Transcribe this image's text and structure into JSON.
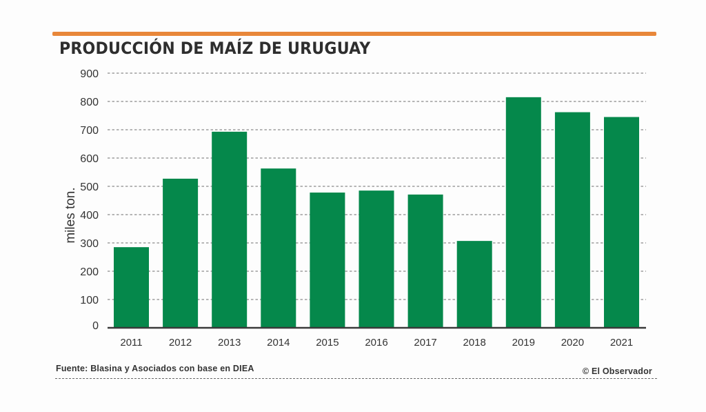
{
  "header": {
    "accent_color": "#e8873a",
    "title": "PRODUCCIÓN DE MAÍZ DE URUGUAY"
  },
  "footer": {
    "source": "Fuente: Blasina y Asociados con base en DIEA",
    "credit": "© El Observador"
  },
  "chart_data": {
    "type": "bar",
    "title": "PRODUCCIÓN DE MAÍZ DE URUGUAY",
    "xlabel": "",
    "ylabel": "miles ton.",
    "categories": [
      "2011",
      "2012",
      "2013",
      "2014",
      "2015",
      "2016",
      "2017",
      "2018",
      "2019",
      "2020",
      "2021"
    ],
    "values": [
      285,
      527,
      693,
      563,
      478,
      485,
      471,
      307,
      815,
      762,
      745
    ],
    "ylim": [
      0,
      900
    ],
    "yticks": [
      0,
      100,
      200,
      300,
      400,
      500,
      600,
      700,
      800,
      900
    ],
    "ytick_labels": [
      "0",
      "100",
      "200",
      "300",
      "400",
      "500",
      "600",
      "700",
      "800",
      "900"
    ],
    "grid": true,
    "grid_style": "dashed",
    "bar_color": "#05884b",
    "legend": "none"
  }
}
